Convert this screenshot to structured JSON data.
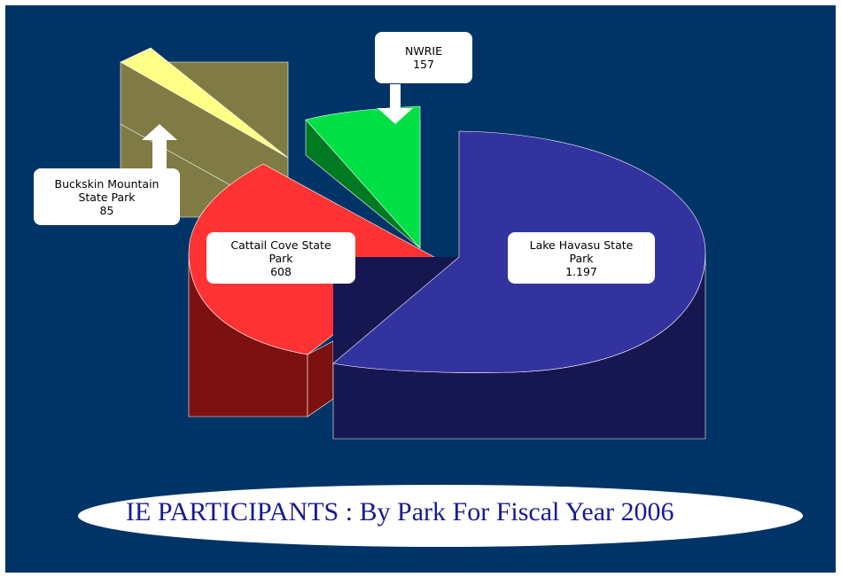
{
  "title": "IE PARTICIPANTS : By Park For Fiscal Year 2006",
  "chart_data": {
    "type": "pie",
    "title": "IE PARTICIPANTS : By Park For Fiscal Year 2006",
    "slices": [
      {
        "label": "Lake Havasu State Park",
        "value": 1197,
        "display_value": "1.197",
        "color": "#3333a0",
        "side_color": "#141450"
      },
      {
        "label": "Cattail Cove State Park",
        "value": 608,
        "display_value": "608",
        "color": "#ff3333",
        "side_color": "#7a1010"
      },
      {
        "label": "NWRIE",
        "value": 157,
        "display_value": "157",
        "color": "#00e044",
        "side_color": "#006b1e"
      },
      {
        "label": "Buckskin Mountain State Park",
        "value": 85,
        "display_value": "85",
        "color": "#ffff88",
        "side_color": "#7d7a44"
      }
    ],
    "exploded": true,
    "three_d": true
  },
  "callouts": {
    "lake_havasu": {
      "line1": "Lake Havasu State",
      "line2": "Park",
      "value": "1.197"
    },
    "cattail_cove": {
      "line1": "Cattail Cove State",
      "line2": "Park",
      "value": "608"
    },
    "nwrie": {
      "line1": "NWRIE",
      "value": "157"
    },
    "buckskin": {
      "line1": "Buckskin Mountain",
      "line2": "State Park",
      "value": "85"
    }
  },
  "colors": {
    "background": "#003466",
    "title_text": "#1a1a8e",
    "callout_bg": "#ffffff"
  }
}
